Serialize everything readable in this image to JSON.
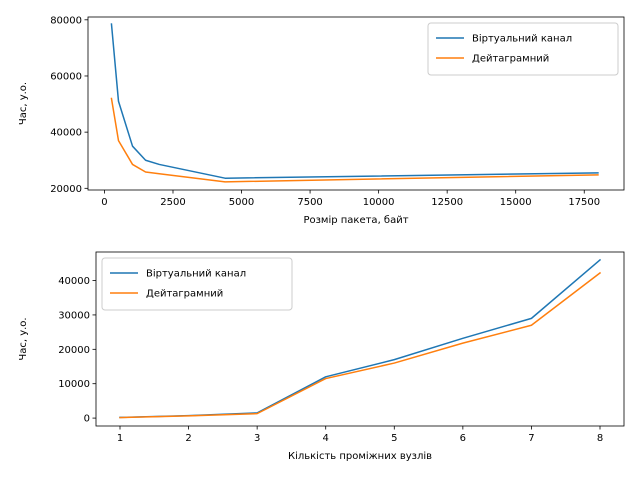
{
  "chart_data": [
    {
      "type": "line",
      "xlabel": "Розмір пакета, байт",
      "ylabel": "Час, у.о.",
      "xlim": [
        -600,
        18950
      ],
      "ylim": [
        19400,
        81000
      ],
      "xticks": [
        0,
        2500,
        5000,
        7500,
        10000,
        12500,
        15000,
        17500
      ],
      "xtick_labels": [
        "0",
        "2500",
        "5000",
        "7500",
        "10000",
        "12500",
        "15000",
        "17500"
      ],
      "yticks": [
        20000,
        40000,
        60000,
        80000
      ],
      "ytick_labels": [
        "20000",
        "40000",
        "60000",
        "80000"
      ],
      "grid": false,
      "legend_position": "upper right",
      "series": [
        {
          "name": "Віртуальний канал",
          "color": "#1f77b4",
          "x": [
            256,
            512,
            1024,
            1500,
            2000,
            4400,
            18000
          ],
          "y": [
            78500,
            51000,
            35000,
            30000,
            28500,
            23600,
            25500
          ]
        },
        {
          "name": "Дейтаграмний",
          "color": "#ff7f0e",
          "x": [
            256,
            512,
            1024,
            1500,
            2000,
            4400,
            18000
          ],
          "y": [
            52000,
            37000,
            28500,
            25800,
            25200,
            22300,
            24800
          ]
        }
      ]
    },
    {
      "type": "line",
      "xlabel": "Кількість проміжних вузлів",
      "ylabel": "Час, у.о.",
      "xlim": [
        0.65,
        8.35
      ],
      "ylim": [
        -2300,
        48300
      ],
      "xticks": [
        1,
        2,
        3,
        4,
        5,
        6,
        7,
        8
      ],
      "xtick_labels": [
        "1",
        "2",
        "3",
        "4",
        "5",
        "6",
        "7",
        "8"
      ],
      "yticks": [
        0,
        10000,
        20000,
        30000,
        40000
      ],
      "ytick_labels": [
        "0",
        "10000",
        "20000",
        "30000",
        "40000"
      ],
      "grid": false,
      "legend_position": "upper left",
      "series": [
        {
          "name": "Віртуальний канал",
          "color": "#1f77b4",
          "x": [
            1,
            2,
            3,
            4,
            5,
            6,
            7,
            8
          ],
          "y": [
            200,
            700,
            1500,
            12000,
            17000,
            23200,
            29000,
            46000
          ]
        },
        {
          "name": "Дейтаграмний",
          "color": "#ff7f0e",
          "x": [
            1,
            2,
            3,
            4,
            5,
            6,
            7,
            8
          ],
          "y": [
            150,
            650,
            1300,
            11500,
            16000,
            21800,
            27000,
            42200
          ]
        }
      ]
    }
  ]
}
